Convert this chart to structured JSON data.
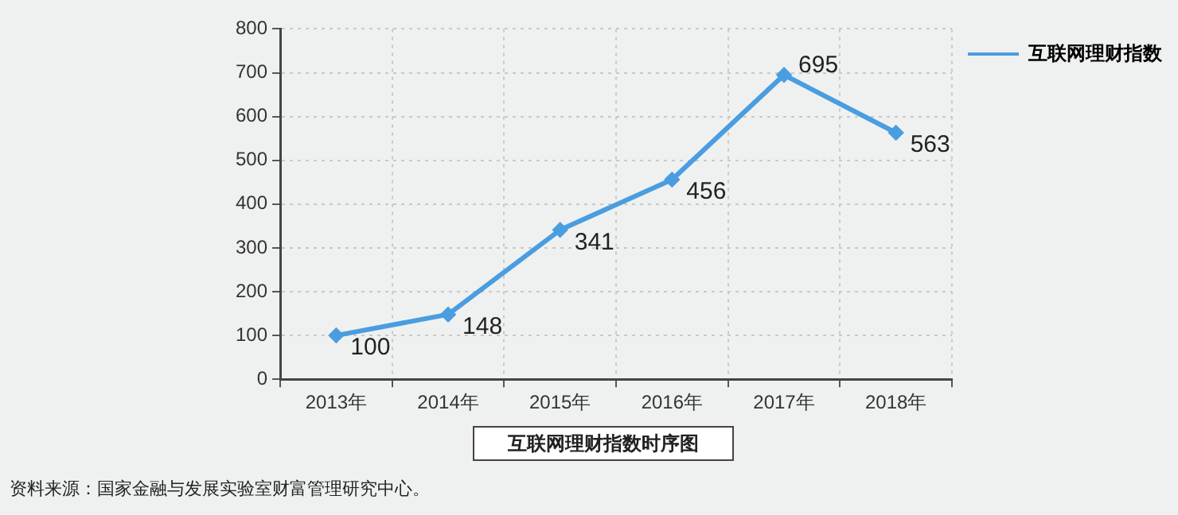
{
  "chart_data": {
    "type": "line",
    "title": "互联网理财指数时序图",
    "categories": [
      "2013年",
      "2014年",
      "2015年",
      "2016年",
      "2017年",
      "2018年"
    ],
    "series": [
      {
        "name": "互联网理财指数",
        "color": "#4a9de0",
        "values": [
          100,
          148,
          341,
          456,
          695,
          563
        ]
      }
    ],
    "ylim": [
      0,
      800
    ],
    "yticks": [
      0,
      100,
      200,
      300,
      400,
      500,
      600,
      700,
      800
    ],
    "grid": true,
    "legend": "top right",
    "marker": "diamond",
    "line_style": "solid",
    "data_labels": true,
    "annotations": [
      "资料来源：国家金融与发展实验室财富管理研究中心。"
    ]
  }
}
